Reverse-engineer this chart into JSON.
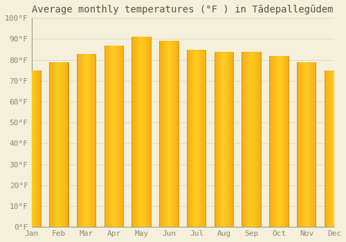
{
  "title": "Average monthly temperatures (°F ) in Tādepallegūdem",
  "months": [
    "Jan",
    "Feb",
    "Mar",
    "Apr",
    "May",
    "Jun",
    "Jul",
    "Aug",
    "Sep",
    "Oct",
    "Nov",
    "Dec"
  ],
  "values": [
    75,
    79,
    83,
    87,
    91,
    89,
    85,
    84,
    84,
    82,
    79,
    75
  ],
  "ylim": [
    0,
    100
  ],
  "yticks": [
    0,
    10,
    20,
    30,
    40,
    50,
    60,
    70,
    80,
    90,
    100
  ],
  "ytick_labels": [
    "0°F",
    "10°F",
    "20°F",
    "30°F",
    "40°F",
    "50°F",
    "60°F",
    "70°F",
    "80°F",
    "90°F",
    "100°F"
  ],
  "bar_color_left": "#E8870A",
  "bar_color_mid": "#FFBB20",
  "bar_color_right": "#E8870A",
  "bar_edge_color": "#CC7700",
  "background_color": "#F5F0DC",
  "grid_color": "#DDDDCC",
  "title_fontsize": 10,
  "tick_fontsize": 8,
  "tick_color": "#888877",
  "bar_width": 0.72,
  "n_gradient_cols": 40
}
